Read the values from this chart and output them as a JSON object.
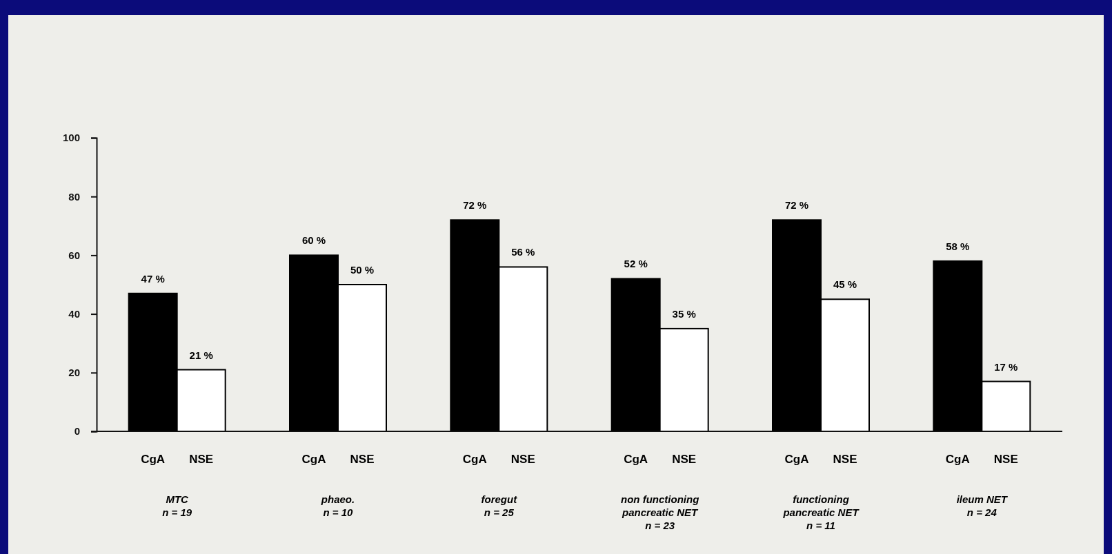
{
  "chart_data": {
    "type": "bar",
    "categories": [
      "MTC\nn = 19",
      "phaeo.\nn = 10",
      "foregut\nn = 25",
      "non functioning\npancreatic NET\nn = 23",
      "functioning\npancreatic NET\nn = 11",
      "ileum NET\nn = 24"
    ],
    "series": [
      {
        "name": "CgA",
        "color": "#000000",
        "values": [
          47,
          60,
          72,
          52,
          72,
          58
        ],
        "value_labels": [
          "47 %",
          "60 %",
          "72 %",
          "52 %",
          "72 %",
          "58 %"
        ]
      },
      {
        "name": "NSE",
        "color": "#ffffff",
        "values": [
          21,
          50,
          56,
          35,
          45,
          17
        ],
        "value_labels": [
          "21 %",
          "50 %",
          "56 %",
          "35 %",
          "45 %",
          "17 %"
        ]
      }
    ],
    "ylim": [
      0,
      100
    ],
    "yticks": [
      0,
      20,
      40,
      60,
      80,
      100
    ],
    "grid": false
  }
}
